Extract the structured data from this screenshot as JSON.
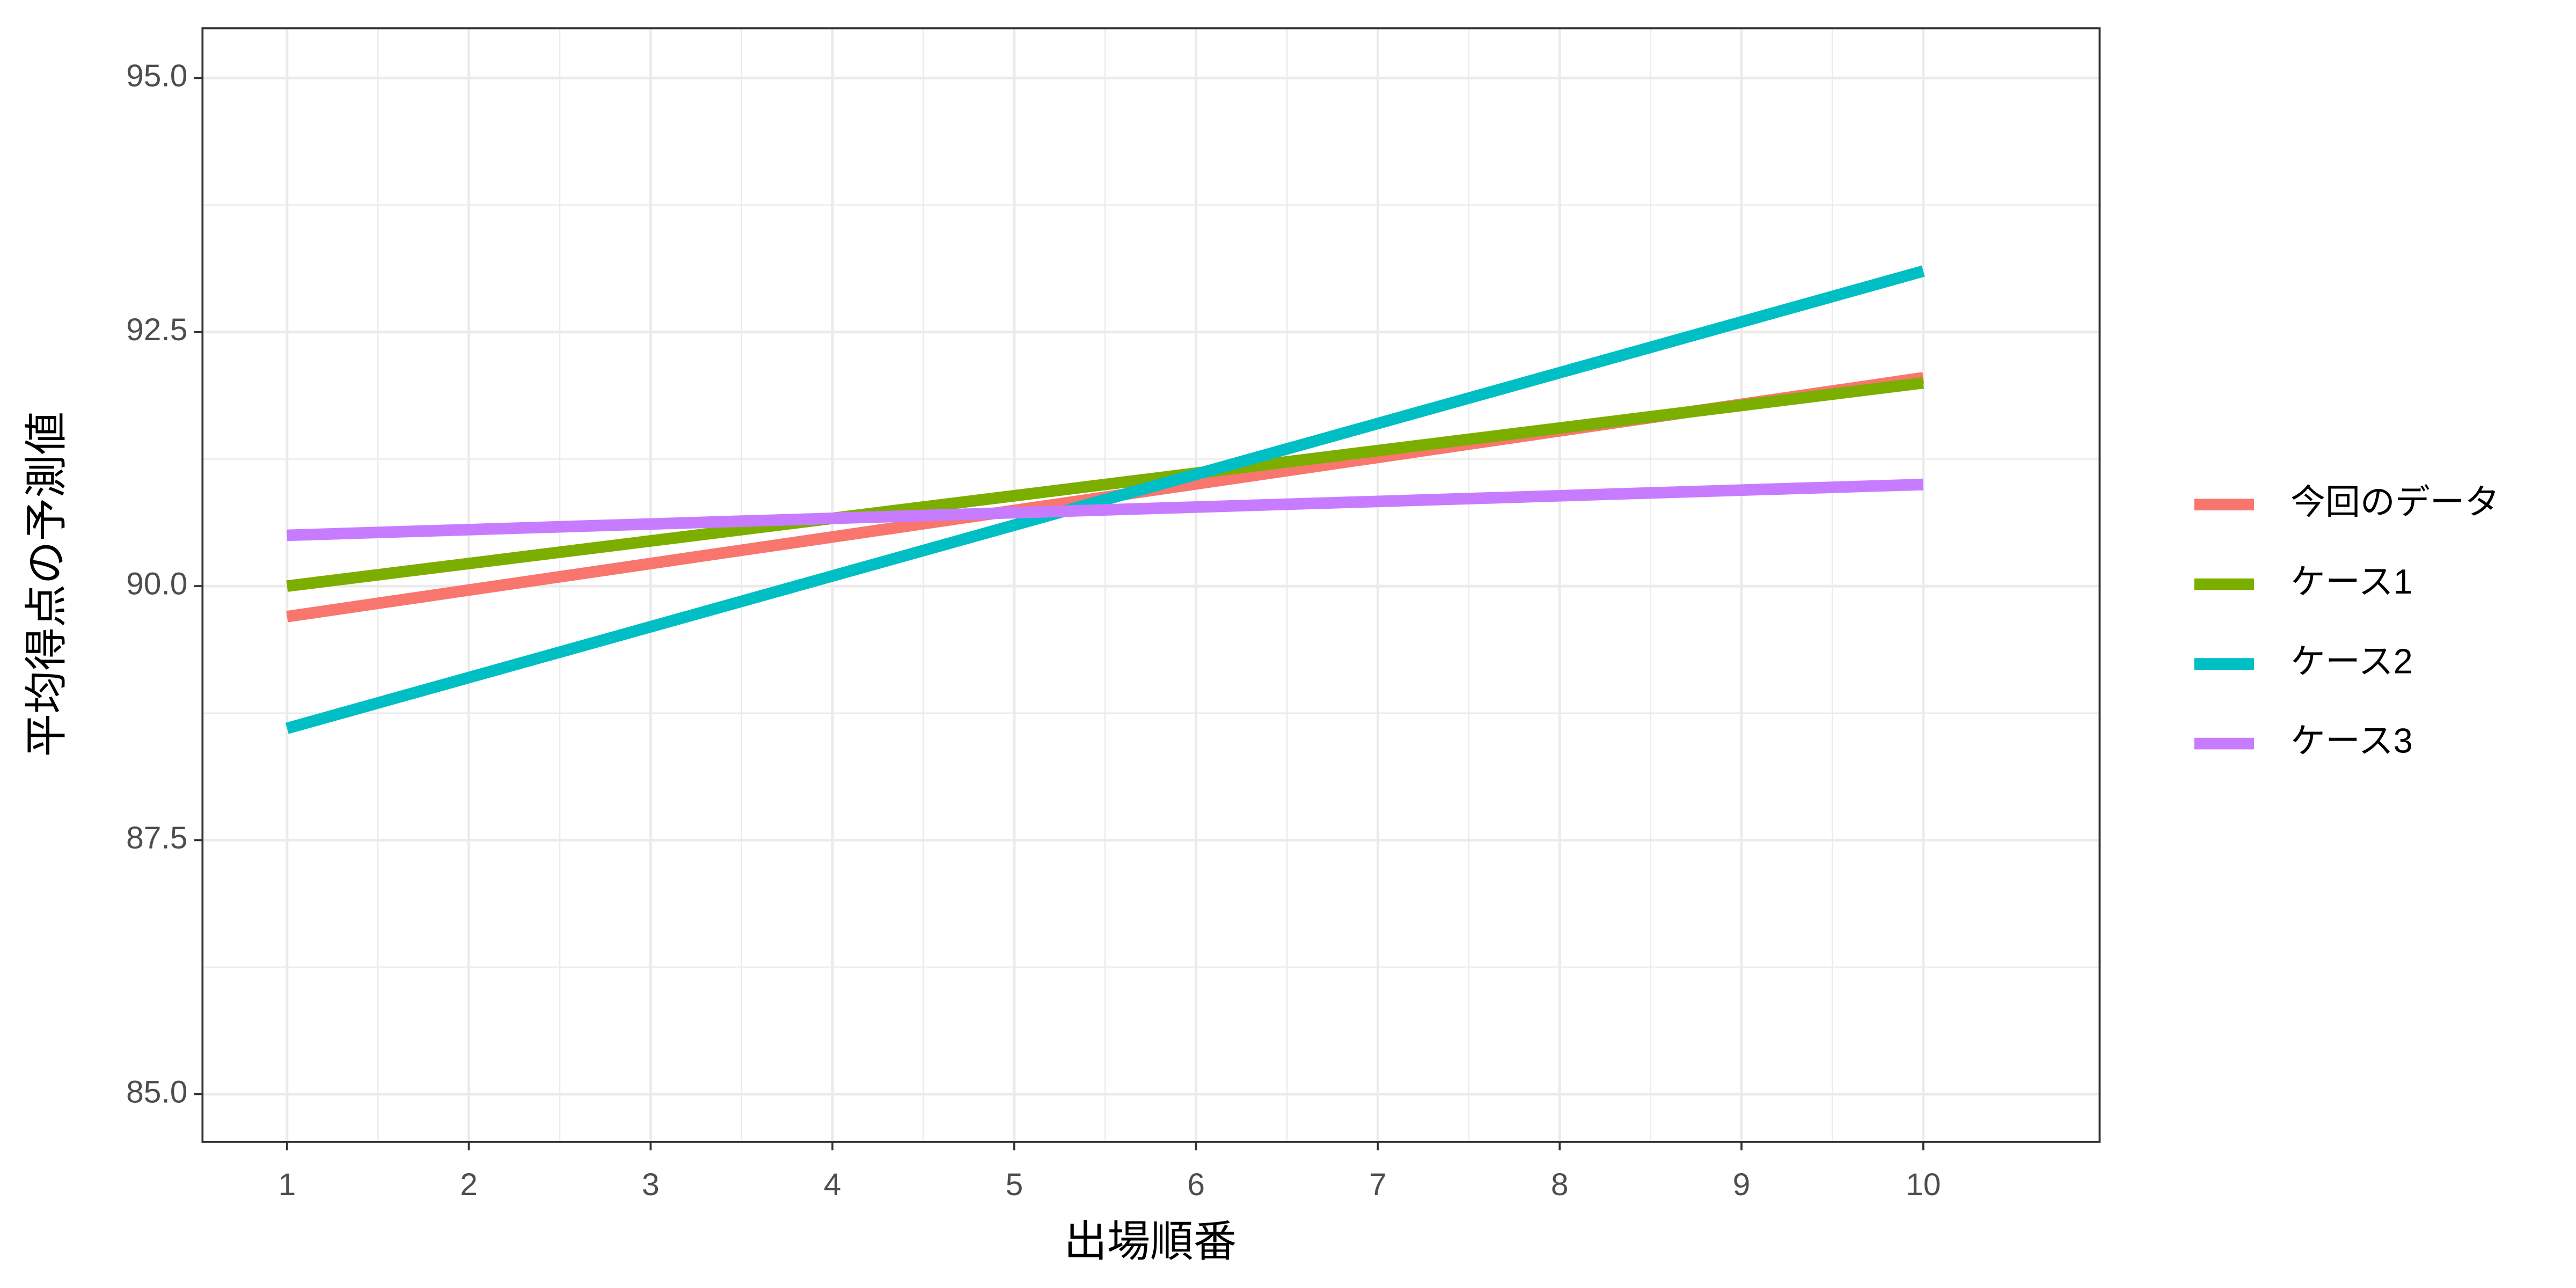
{
  "chart_data": {
    "type": "line",
    "x_label": "出場順番",
    "y_label": "平均得点の予測値",
    "x": [
      1,
      10
    ],
    "series": [
      {
        "name": "今回のデータ",
        "color": "#F8766D",
        "values": [
          89.7,
          92.05
        ]
      },
      {
        "name": "ケース1",
        "color": "#7CAE00",
        "values": [
          90.0,
          92.0
        ]
      },
      {
        "name": "ケース2",
        "color": "#00BFC4",
        "values": [
          88.6,
          93.1
        ]
      },
      {
        "name": "ケース3",
        "color": "#C77CFF",
        "values": [
          90.5,
          91.0
        ]
      }
    ],
    "xlim": [
      0.535,
      10.97
    ],
    "xticks": [
      1,
      2,
      3,
      4,
      5,
      6,
      7,
      8,
      9,
      10
    ],
    "ylim": [
      84.53,
      95.49
    ],
    "yticks": [
      {
        "value": 85,
        "label": "85.0"
      },
      87.5,
      {
        "value": 90,
        "label": "90.0"
      },
      92.5,
      {
        "value": 95,
        "label": "95.0"
      }
    ],
    "grid": true,
    "legend": "right"
  }
}
